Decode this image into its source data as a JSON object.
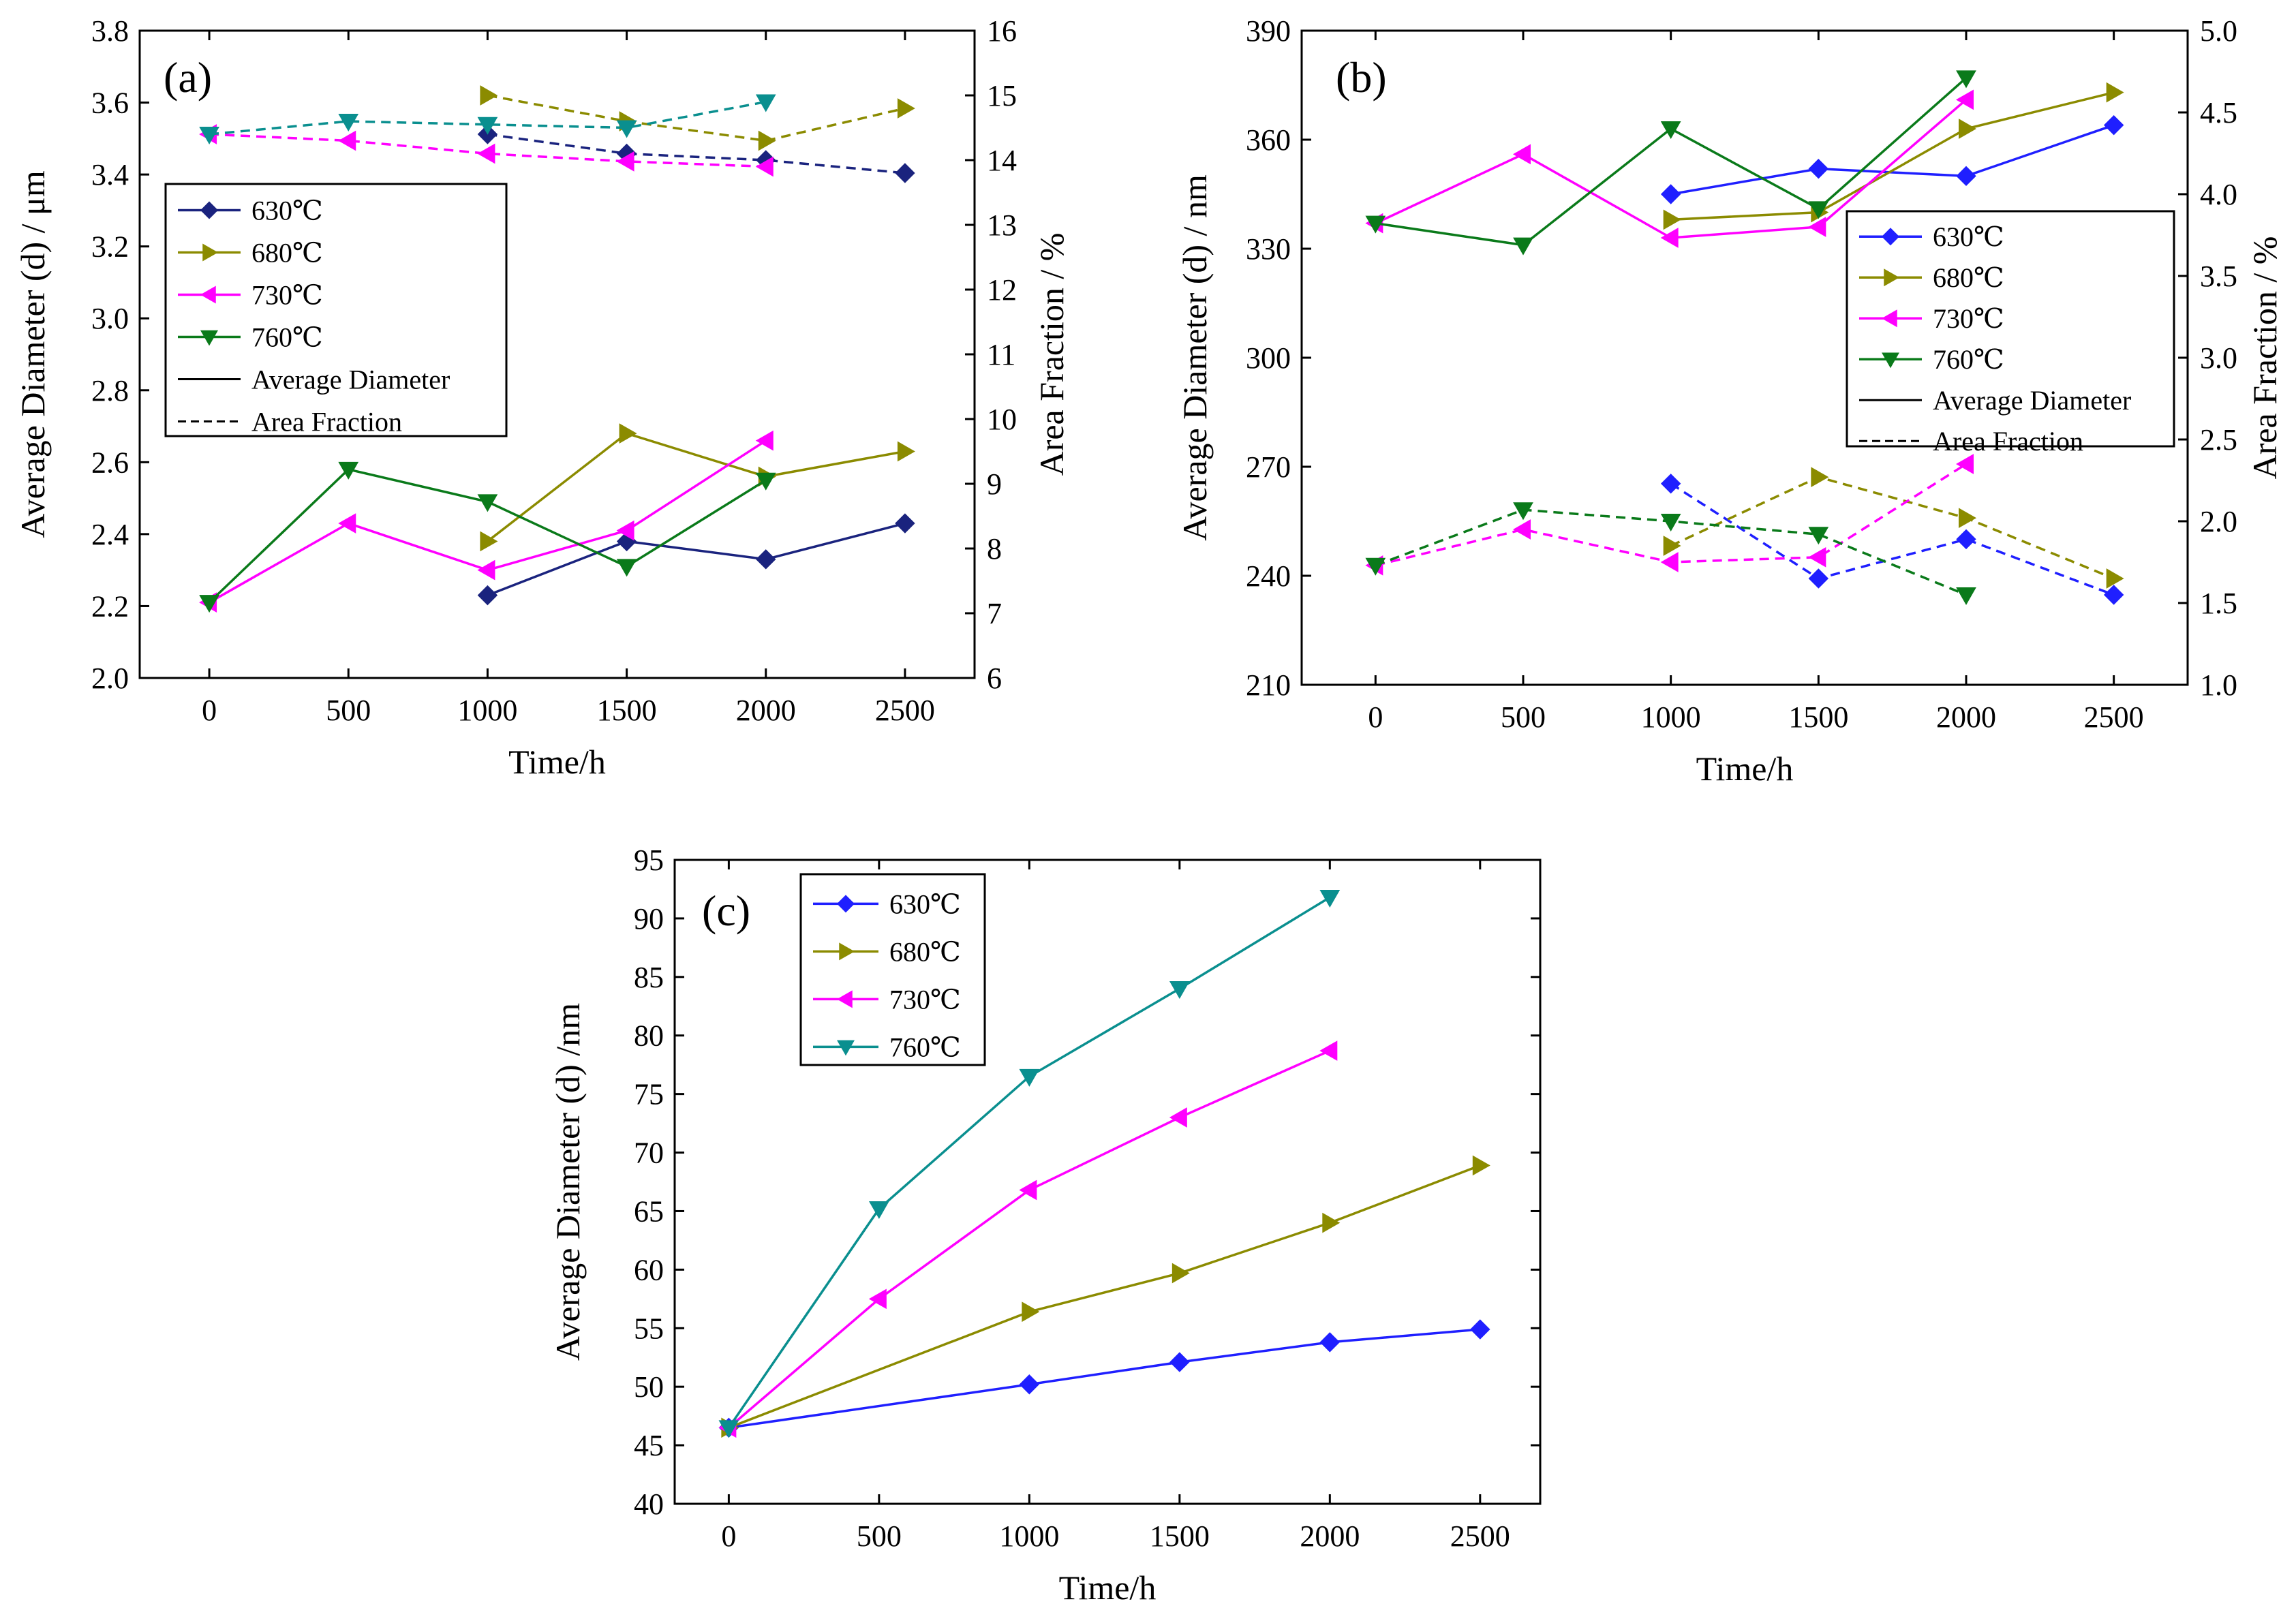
{
  "chart_data": [
    {
      "id": "a",
      "type": "line",
      "panel_label": "(a)",
      "xlabel": "Time/h",
      "ylabel": "Average Diameter (d) / μm",
      "y2label": "Area Fraction / %",
      "x_ticks": [
        0,
        500,
        1000,
        1500,
        2000,
        2500
      ],
      "xlim": [
        -250,
        2750
      ],
      "ylim": [
        2.0,
        3.8
      ],
      "y_ticks": [
        "2.0",
        "2.2",
        "2.4",
        "2.6",
        "2.8",
        "3.0",
        "3.2",
        "3.4",
        "3.6",
        "3.8"
      ],
      "y2lim": [
        6,
        16
      ],
      "y2_ticks": [
        "6",
        "7",
        "8",
        "9",
        "10",
        "11",
        "12",
        "13",
        "14",
        "15",
        "16"
      ],
      "legend": {
        "placement": "upper-left",
        "entries": [
          "630℃",
          "680℃",
          "730℃",
          "760℃"
        ],
        "style_entries": [
          "Average Diameter",
          "Area Fraction"
        ]
      },
      "series": [
        {
          "name": "630℃",
          "color": "#1a237e",
          "marker": "diamond",
          "axis": "left",
          "dash": false,
          "x": [
            1000,
            1500,
            2000,
            2500
          ],
          "values": [
            2.23,
            2.38,
            2.33,
            2.43
          ]
        },
        {
          "name": "680℃",
          "color": "#8b8b00",
          "marker": "triangle-right",
          "axis": "left",
          "dash": false,
          "x": [
            1000,
            1500,
            2000,
            2500
          ],
          "values": [
            2.38,
            2.68,
            2.56,
            2.63
          ]
        },
        {
          "name": "730℃",
          "color": "#ff00ff",
          "marker": "triangle-left",
          "axis": "left",
          "dash": false,
          "x": [
            0,
            500,
            1000,
            1500,
            2000
          ],
          "values": [
            2.21,
            2.43,
            2.3,
            2.41,
            2.66
          ]
        },
        {
          "name": "760℃",
          "color": "#0a7a1a",
          "marker": "triangle-down",
          "axis": "left",
          "dash": false,
          "x": [
            0,
            500,
            1000,
            1500,
            2000
          ],
          "values": [
            2.21,
            2.58,
            2.49,
            2.31,
            2.55
          ]
        },
        {
          "name": "630℃",
          "color": "#1a237e",
          "marker": "diamond",
          "axis": "right",
          "dash": true,
          "x": [
            1000,
            1500,
            2000,
            2500
          ],
          "values": [
            14.4,
            14.1,
            14.0,
            13.8
          ]
        },
        {
          "name": "680℃",
          "color": "#8b8b00",
          "marker": "triangle-right",
          "axis": "right",
          "dash": true,
          "x": [
            1000,
            1500,
            2000,
            2500
          ],
          "values": [
            15.0,
            14.6,
            14.3,
            14.8
          ]
        },
        {
          "name": "730℃",
          "color": "#ff00ff",
          "marker": "triangle-left",
          "axis": "right",
          "dash": true,
          "x": [
            0,
            500,
            1000,
            1500,
            2000
          ],
          "values": [
            14.4,
            14.3,
            14.1,
            13.98,
            13.9
          ]
        },
        {
          "name": "760℃",
          "color": "#0a8f8f",
          "marker": "triangle-down",
          "axis": "right",
          "dash": true,
          "x": [
            0,
            500,
            1000,
            1500,
            2000
          ],
          "values": [
            14.4,
            14.6,
            14.55,
            14.5,
            14.9
          ]
        }
      ]
    },
    {
      "id": "b",
      "type": "line",
      "panel_label": "(b)",
      "xlabel": "Time/h",
      "ylabel": "Average Diameter (d) / nm",
      "y2label": "Area Fraction / %",
      "x_ticks": [
        0,
        500,
        1000,
        1500,
        2000,
        2500
      ],
      "xlim": [
        -250,
        2750
      ],
      "ylim": [
        210,
        390
      ],
      "y_ticks": [
        "210",
        "240",
        "270",
        "300",
        "330",
        "360",
        "390"
      ],
      "y2lim": [
        1.0,
        5.0
      ],
      "y2_ticks": [
        "1.0",
        "1.5",
        "2.0",
        "2.5",
        "3.0",
        "3.5",
        "4.0",
        "4.5",
        "5.0"
      ],
      "legend": {
        "placement": "middle-right",
        "entries": [
          "630℃",
          "680℃",
          "730℃",
          "760℃"
        ],
        "style_entries": [
          "Average Diameter",
          "Area Fraction"
        ]
      },
      "series": [
        {
          "name": "630℃",
          "color": "#1f1fff",
          "marker": "diamond",
          "axis": "left",
          "dash": false,
          "x": [
            1000,
            1500,
            2000,
            2500
          ],
          "values": [
            345,
            352,
            350,
            364
          ]
        },
        {
          "name": "680℃",
          "color": "#8b8b00",
          "marker": "triangle-right",
          "axis": "left",
          "dash": false,
          "x": [
            1000,
            1500,
            2000,
            2500
          ],
          "values": [
            338,
            340,
            363,
            373
          ]
        },
        {
          "name": "730℃",
          "color": "#ff00ff",
          "marker": "triangle-left",
          "axis": "left",
          "dash": false,
          "x": [
            0,
            500,
            1000,
            1500,
            2000
          ],
          "values": [
            337,
            356,
            333,
            336,
            371
          ]
        },
        {
          "name": "760℃",
          "color": "#0a7a1a",
          "marker": "triangle-down",
          "axis": "left",
          "dash": false,
          "x": [
            0,
            500,
            1000,
            1500,
            2000
          ],
          "values": [
            337,
            331,
            363,
            341,
            377
          ]
        },
        {
          "name": "630℃",
          "color": "#1f1fff",
          "marker": "diamond",
          "axis": "right",
          "dash": true,
          "x": [
            1000,
            1500,
            2000,
            2500
          ],
          "values": [
            2.23,
            1.65,
            1.89,
            1.55
          ]
        },
        {
          "name": "680℃",
          "color": "#8b8b00",
          "marker": "triangle-right",
          "axis": "right",
          "dash": true,
          "x": [
            1000,
            1500,
            2000,
            2500
          ],
          "values": [
            1.85,
            2.27,
            2.02,
            1.65
          ]
        },
        {
          "name": "730℃",
          "color": "#ff00ff",
          "marker": "triangle-left",
          "axis": "right",
          "dash": true,
          "x": [
            0,
            500,
            1000,
            1500,
            2000
          ],
          "values": [
            1.73,
            1.95,
            1.75,
            1.78,
            2.35
          ]
        },
        {
          "name": "760℃",
          "color": "#0a7a1a",
          "marker": "triangle-down",
          "axis": "right",
          "dash": true,
          "x": [
            0,
            500,
            1000,
            1500,
            2000
          ],
          "values": [
            1.73,
            2.07,
            2.0,
            1.92,
            1.55
          ]
        }
      ]
    },
    {
      "id": "c",
      "type": "line",
      "panel_label": "(c)",
      "xlabel": "Time/h",
      "ylabel": "Average Diameter (d) /nm",
      "x_ticks": [
        0,
        500,
        1000,
        1500,
        2000,
        2500
      ],
      "xlim": [
        -180,
        2700
      ],
      "ylim": [
        40,
        95
      ],
      "y_ticks": [
        "40",
        "45",
        "50",
        "55",
        "60",
        "65",
        "70",
        "75",
        "80",
        "85",
        "90",
        "95"
      ],
      "legend": {
        "placement": "upper-left",
        "entries": [
          "630℃",
          "680℃",
          "730℃",
          "760℃"
        ]
      },
      "series": [
        {
          "name": "630℃",
          "color": "#1f1fff",
          "marker": "diamond",
          "axis": "left",
          "dash": false,
          "x": [
            0,
            1000,
            1500,
            2000,
            2500
          ],
          "values": [
            46.5,
            50.2,
            52.1,
            53.8,
            54.9
          ]
        },
        {
          "name": "680℃",
          "color": "#8b8b00",
          "marker": "triangle-right",
          "axis": "left",
          "dash": false,
          "x": [
            0,
            1000,
            1500,
            2000,
            2500
          ],
          "values": [
            46.5,
            56.4,
            59.7,
            64.0,
            68.9
          ]
        },
        {
          "name": "730℃",
          "color": "#ff00ff",
          "marker": "triangle-left",
          "axis": "left",
          "dash": false,
          "x": [
            0,
            500,
            1000,
            1500,
            2000
          ],
          "values": [
            46.5,
            57.5,
            66.8,
            73.0,
            78.7
          ]
        },
        {
          "name": "760℃",
          "color": "#0a8f8f",
          "marker": "triangle-down",
          "axis": "left",
          "dash": false,
          "x": [
            0,
            500,
            1000,
            1500,
            2000
          ],
          "values": [
            46.5,
            65.2,
            76.5,
            84.0,
            91.8
          ]
        }
      ]
    }
  ]
}
